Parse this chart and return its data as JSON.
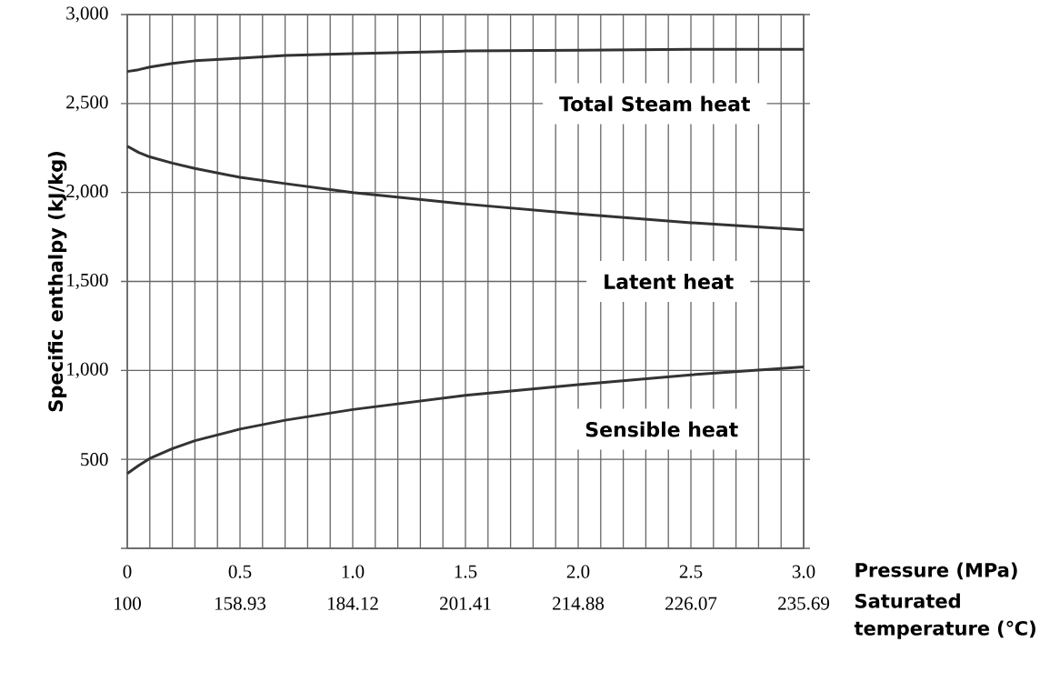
{
  "chart_data": {
    "type": "line",
    "xlabel": "Pressure (MPa)",
    "ylabel": "Specific enthalpy (kJ/kg)",
    "x": [
      0,
      0.05,
      0.1,
      0.2,
      0.3,
      0.5,
      0.7,
      1.0,
      1.5,
      2.0,
      2.5,
      3.0
    ],
    "series": [
      {
        "name": "Total Steam heat",
        "color": "#333333",
        "values": [
          2680,
          2690,
          2705,
          2725,
          2740,
          2755,
          2770,
          2780,
          2795,
          2800,
          2805,
          2805
        ]
      },
      {
        "name": "Latent heat",
        "color": "#333333",
        "values": [
          2260,
          2225,
          2200,
          2165,
          2135,
          2085,
          2050,
          2000,
          1935,
          1880,
          1830,
          1790
        ]
      },
      {
        "name": "Sensible heat",
        "color": "#333333",
        "values": [
          420,
          465,
          505,
          560,
          605,
          670,
          720,
          780,
          860,
          920,
          975,
          1020
        ]
      }
    ],
    "xlim": [
      0,
      3.0
    ],
    "ylim": [
      0,
      3000
    ],
    "xticks": [
      0,
      {
        "value": 0.1,
        "label": null
      },
      {
        "value": 0.2,
        "label": null
      },
      {
        "value": 0.3,
        "label": null
      },
      {
        "value": 0.4,
        "label": null
      },
      0.5,
      {
        "value": 0.6,
        "label": null
      },
      {
        "value": 0.7,
        "label": null
      },
      {
        "value": 0.8,
        "label": null
      },
      {
        "value": 0.9,
        "label": null
      },
      {
        "value": 1.0,
        "label": "1.0"
      },
      {
        "value": 1.1,
        "label": null
      },
      {
        "value": 1.2,
        "label": null
      },
      {
        "value": 1.3,
        "label": null
      },
      {
        "value": 1.4,
        "label": null
      },
      1.5,
      {
        "value": 1.6,
        "label": null
      },
      {
        "value": 1.7,
        "label": null
      },
      {
        "value": 1.8,
        "label": null
      },
      {
        "value": 1.9,
        "label": null
      },
      {
        "value": 2.0,
        "label": "2.0"
      },
      {
        "value": 2.1,
        "label": null
      },
      {
        "value": 2.2,
        "label": null
      },
      {
        "value": 2.3,
        "label": null
      },
      {
        "value": 2.4,
        "label": null
      },
      2.5,
      {
        "value": 2.6,
        "label": null
      },
      {
        "value": 2.7,
        "label": null
      },
      {
        "value": 2.8,
        "label": null
      },
      {
        "value": 2.9,
        "label": null
      },
      {
        "value": 3.0,
        "label": "3.0"
      }
    ],
    "annotations": [
      "100",
      "158.93",
      "184.12",
      "201.41",
      "214.88",
      "226.07",
      "235.69",
      "Saturated temperature (℃)"
    ],
    "yticks": [
      {
        "value": 0,
        "label": null
      },
      500,
      {
        "value": 1000,
        "label": "1,000"
      },
      {
        "value": 1500,
        "label": "1,500"
      },
      {
        "value": 2000,
        "label": "2,000"
      },
      {
        "value": 2500,
        "label": "2,500"
      },
      {
        "value": 3000,
        "label": "3,000"
      }
    ],
    "grid": true
  }
}
